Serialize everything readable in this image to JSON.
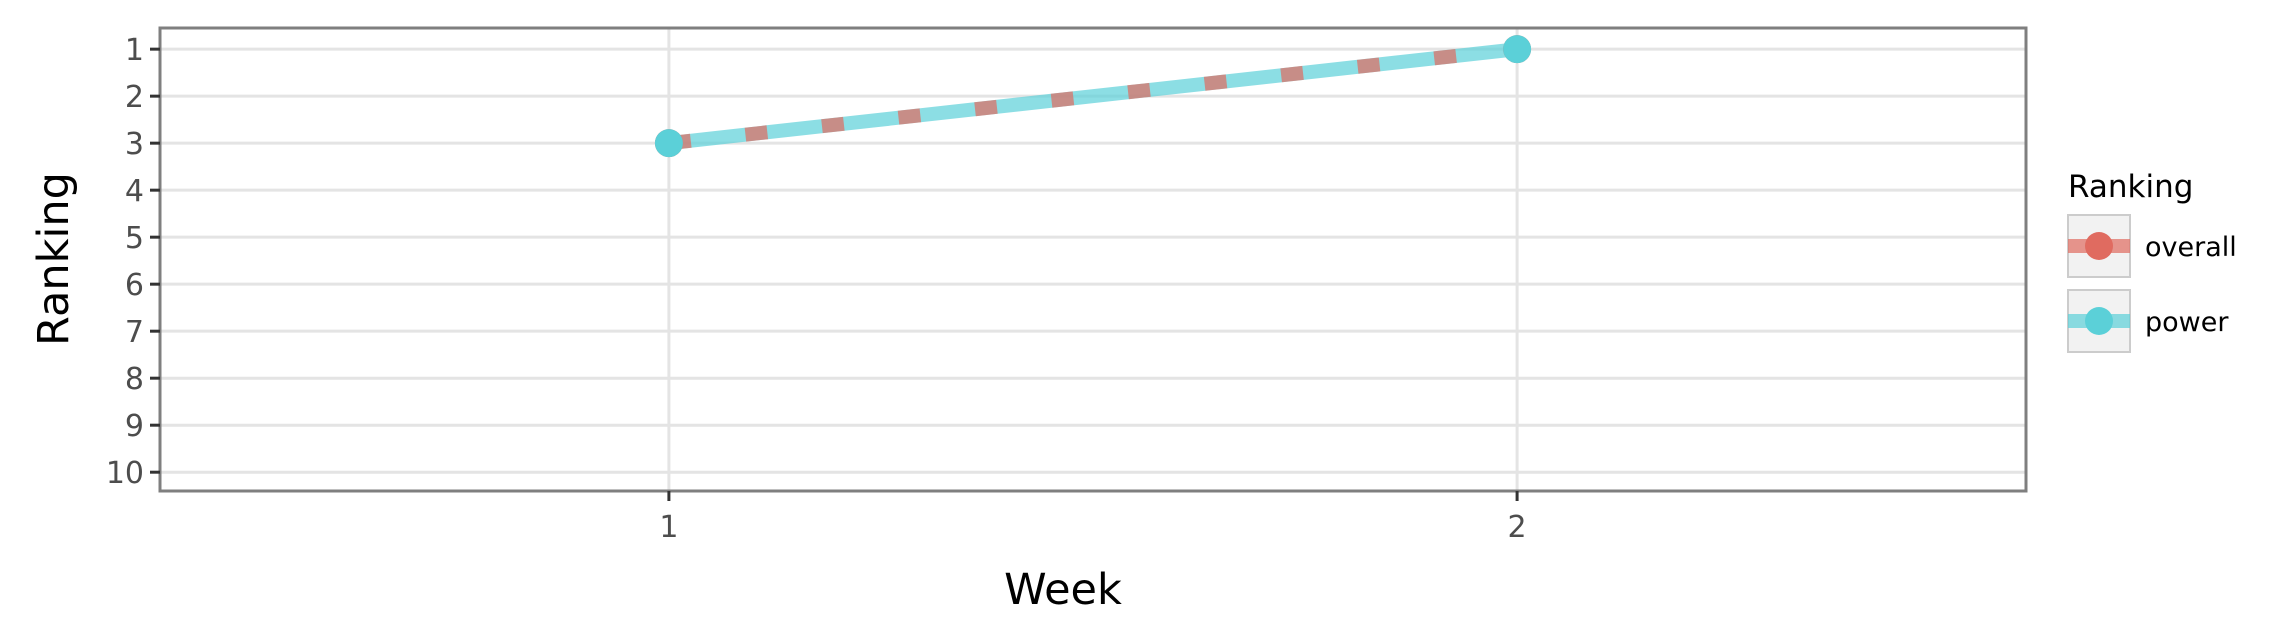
{
  "chart_data": {
    "type": "line",
    "xlabel": "Week",
    "ylabel": "Ranking",
    "x": [
      1,
      2
    ],
    "x_ticks": [
      "1",
      "2"
    ],
    "xlim": [
      0.4,
      2.6
    ],
    "y_ticks": [
      "1",
      "2",
      "3",
      "4",
      "5",
      "6",
      "7",
      "8",
      "9",
      "10"
    ],
    "ylim": [
      10.4,
      0.55
    ],
    "y_reversed": true,
    "grid": true,
    "legend": {
      "title": "Ranking",
      "placement": "right"
    },
    "series": [
      {
        "name": "overall",
        "values": [
          3,
          1
        ],
        "color": "#e06b60",
        "line_style": "dashed"
      },
      {
        "name": "power",
        "values": [
          3,
          1
        ],
        "color": "#5bd0d8",
        "line_style": "solid"
      }
    ]
  }
}
